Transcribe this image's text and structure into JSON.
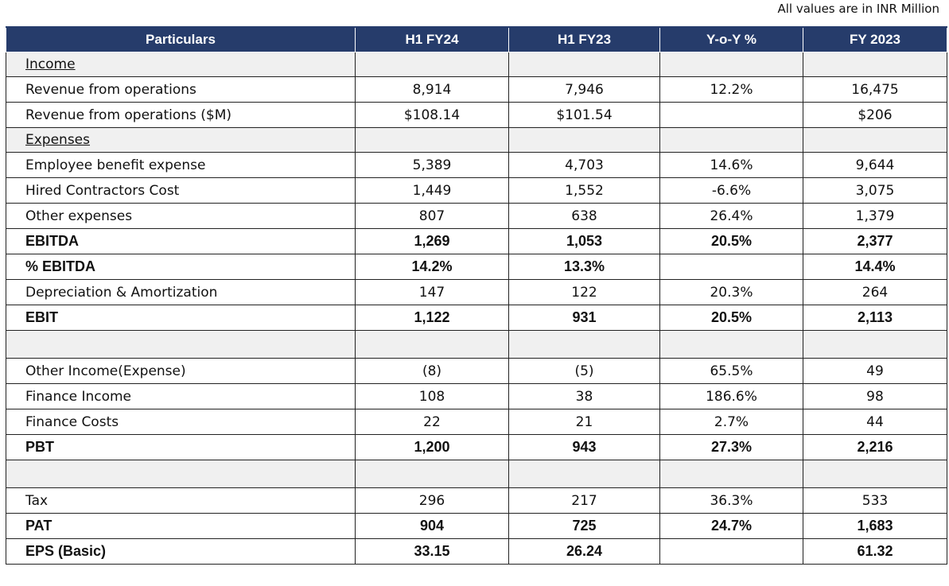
{
  "note": "All values are in INR Million",
  "columns": [
    "Particulars",
    "H1 FY24",
    "H1 FY23",
    "Y-o-Y %",
    "FY 2023"
  ],
  "rows": [
    {
      "type": "section",
      "cells": [
        "Income",
        "",
        "",
        "",
        ""
      ]
    },
    {
      "type": "normal",
      "cells": [
        "Revenue from operations",
        "8,914",
        "7,946",
        "12.2%",
        "16,475"
      ]
    },
    {
      "type": "normal",
      "cells": [
        "Revenue from operations ($M)",
        "$108.14",
        "$101.54",
        "",
        "$206"
      ]
    },
    {
      "type": "section",
      "cells": [
        "Expenses",
        "",
        "",
        "",
        ""
      ]
    },
    {
      "type": "normal",
      "cells": [
        "Employee benefit expense",
        "5,389",
        "4,703",
        "14.6%",
        "9,644"
      ]
    },
    {
      "type": "normal",
      "cells": [
        "Hired Contractors Cost",
        "1,449",
        "1,552",
        "-6.6%",
        "3,075"
      ]
    },
    {
      "type": "normal",
      "cells": [
        "Other expenses",
        "807",
        "638",
        "26.4%",
        "1,379"
      ]
    },
    {
      "type": "bold",
      "cells": [
        "EBITDA",
        "1,269",
        "1,053",
        "20.5%",
        "2,377"
      ]
    },
    {
      "type": "bold",
      "cells": [
        "% EBITDA",
        "14.2%",
        "13.3%",
        "",
        "14.4%"
      ]
    },
    {
      "type": "normal",
      "cells": [
        "Depreciation & Amortization",
        "147",
        "122",
        "20.3%",
        "264"
      ]
    },
    {
      "type": "bold",
      "cells": [
        "EBIT",
        "1,122",
        "931",
        "20.5%",
        "2,113"
      ]
    },
    {
      "type": "spacer",
      "cells": [
        "",
        "",
        "",
        "",
        ""
      ]
    },
    {
      "type": "normal",
      "cells": [
        "Other Income(Expense)",
        "(8)",
        "(5)",
        "65.5%",
        "49"
      ]
    },
    {
      "type": "normal",
      "cells": [
        "Finance Income",
        "108",
        "38",
        "186.6%",
        "98"
      ]
    },
    {
      "type": "normal",
      "cells": [
        "Finance Costs",
        "22",
        "21",
        "2.7%",
        "44"
      ]
    },
    {
      "type": "bold",
      "cells": [
        "PBT",
        "1,200",
        "943",
        "27.3%",
        "2,216"
      ]
    },
    {
      "type": "spacer",
      "cells": [
        "",
        "",
        "",
        "",
        ""
      ]
    },
    {
      "type": "normal",
      "cells": [
        "Tax",
        "296",
        "217",
        "36.3%",
        "533"
      ]
    },
    {
      "type": "bold",
      "cells": [
        "PAT",
        "904",
        "725",
        "24.7%",
        "1,683"
      ]
    },
    {
      "type": "bold",
      "cells": [
        "EPS (Basic)",
        "33.15",
        "26.24",
        "",
        "61.32"
      ]
    }
  ]
}
